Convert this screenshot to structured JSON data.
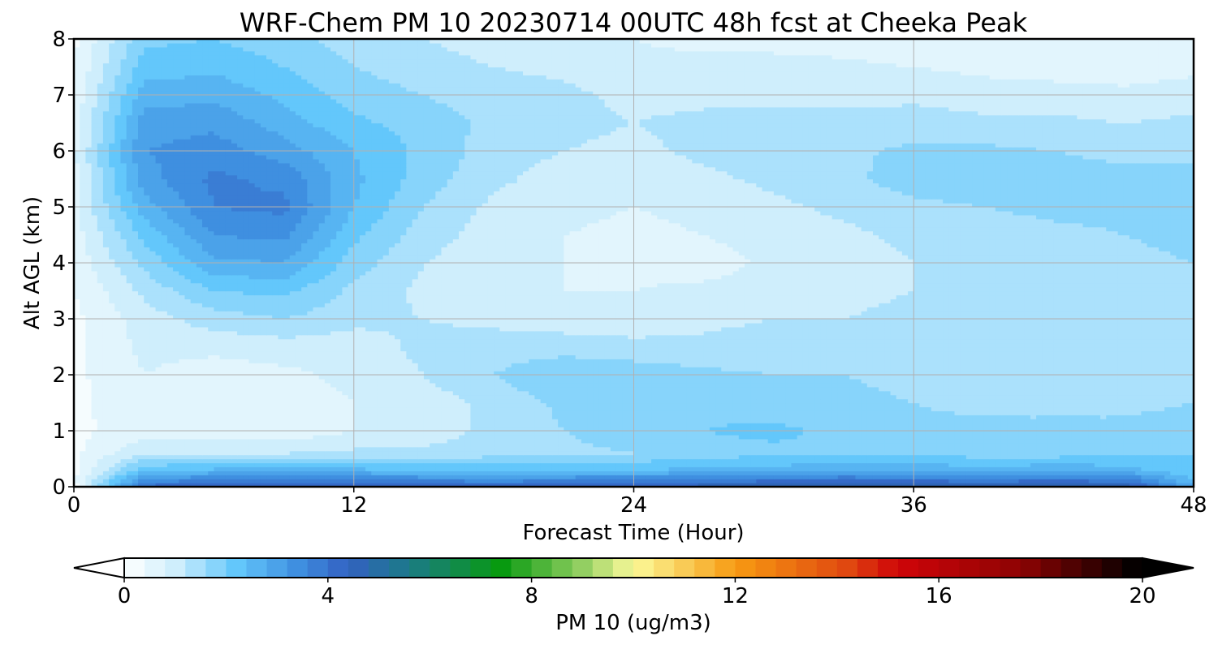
{
  "chart_data": {
    "type": "heatmap",
    "title": "WRF-Chem PM 10  20230714 00UTC 48h fcst at Cheeka Peak",
    "xlabel": "Forecast Time (Hour)",
    "ylabel": "Alt AGL (km)",
    "xlim": [
      0,
      48
    ],
    "ylim": [
      0,
      8
    ],
    "x_ticks": [
      "0",
      "12",
      "24",
      "36",
      "48"
    ],
    "y_ticks": [
      "0",
      "1",
      "2",
      "3",
      "4",
      "5",
      "6",
      "7",
      "8"
    ],
    "grid": true,
    "x_hours": [
      0,
      3,
      6,
      9,
      12,
      15,
      18,
      21,
      24,
      27,
      30,
      33,
      36,
      39,
      42,
      45,
      48
    ],
    "y_km": [
      0,
      0.1,
      0.3,
      0.6,
      1,
      1.5,
      2,
      2.5,
      3,
      3.5,
      4,
      4.5,
      5,
      5.5,
      6,
      6.5,
      7,
      7.5,
      8
    ],
    "values_ugm3": [
      [
        0.2,
        4.2,
        4.5,
        4.6,
        4.5,
        4.4,
        4.3,
        4.4,
        4.5,
        4.7,
        4.9,
        5.0,
        4.9,
        4.8,
        4.9,
        4.8,
        3.0
      ],
      [
        0.3,
        3.5,
        3.8,
        3.9,
        3.8,
        3.7,
        3.6,
        3.7,
        3.8,
        3.9,
        4.1,
        4.2,
        4.1,
        4.0,
        4.1,
        4.0,
        2.5
      ],
      [
        0.3,
        2.3,
        2.5,
        2.5,
        2.5,
        2.4,
        2.4,
        2.4,
        2.4,
        2.5,
        2.6,
        2.7,
        2.7,
        2.6,
        2.7,
        2.6,
        2.0
      ],
      [
        0.3,
        1.2,
        1.2,
        1.2,
        1.3,
        1.3,
        1.4,
        1.5,
        1.6,
        1.8,
        1.9,
        1.9,
        1.9,
        1.8,
        1.8,
        1.9,
        2.0
      ],
      [
        0.3,
        0.6,
        0.5,
        0.5,
        0.8,
        1.0,
        1.3,
        1.6,
        1.8,
        2.0,
        2.1,
        1.9,
        1.7,
        1.7,
        1.7,
        1.7,
        1.8
      ],
      [
        0.3,
        0.7,
        0.6,
        0.6,
        0.8,
        1.0,
        1.3,
        1.7,
        2.0,
        1.9,
        1.8,
        1.7,
        1.6,
        1.5,
        1.5,
        1.5,
        1.6
      ],
      [
        0.3,
        0.8,
        0.6,
        0.7,
        0.9,
        1.2,
        1.6,
        2.0,
        1.9,
        1.7,
        1.6,
        1.6,
        1.5,
        1.4,
        1.4,
        1.4,
        1.5
      ],
      [
        0.3,
        0.9,
        0.9,
        1.0,
        1.0,
        1.3,
        1.4,
        1.4,
        1.3,
        1.3,
        1.4,
        1.4,
        1.4,
        1.3,
        1.3,
        1.3,
        1.4
      ],
      [
        0.3,
        1.0,
        1.4,
        1.6,
        1.3,
        1.2,
        1.1,
        1.0,
        1.0,
        1.1,
        1.2,
        1.2,
        1.3,
        1.3,
        1.2,
        1.2,
        1.3
      ],
      [
        0.4,
        1.3,
        2.0,
        2.1,
        1.5,
        1.1,
        0.9,
        0.8,
        0.8,
        0.9,
        1.0,
        1.1,
        1.2,
        1.2,
        1.3,
        1.4,
        1.4
      ],
      [
        0.5,
        1.7,
        2.7,
        2.8,
        1.8,
        1.2,
        0.9,
        0.8,
        0.7,
        0.6,
        0.9,
        1.0,
        1.2,
        1.3,
        1.4,
        1.5,
        1.6
      ],
      [
        0.6,
        2.1,
        3.2,
        3.3,
        2.1,
        1.4,
        1.0,
        0.8,
        0.7,
        0.8,
        1.0,
        1.1,
        1.3,
        1.4,
        1.5,
        1.6,
        1.7
      ],
      [
        0.7,
        2.6,
        3.6,
        3.7,
        2.4,
        1.6,
        1.1,
        0.9,
        0.8,
        0.9,
        1.1,
        1.3,
        1.5,
        1.6,
        1.7,
        1.7,
        1.8
      ],
      [
        0.7,
        3.0,
        3.7,
        3.5,
        2.5,
        1.8,
        1.3,
        1.0,
        0.9,
        1.1,
        1.3,
        1.5,
        1.8,
        1.8,
        1.8,
        1.7,
        1.7
      ],
      [
        0.7,
        3.2,
        3.4,
        3.0,
        2.4,
        1.9,
        1.4,
        1.2,
        1.1,
        1.3,
        1.4,
        1.5,
        1.7,
        1.7,
        1.6,
        1.5,
        1.5
      ],
      [
        0.6,
        3.0,
        3.1,
        2.6,
        2.1,
        1.8,
        1.5,
        1.3,
        1.2,
        1.3,
        1.3,
        1.3,
        1.4,
        1.3,
        1.3,
        1.2,
        1.3
      ],
      [
        0.5,
        2.6,
        2.7,
        2.3,
        1.8,
        1.6,
        1.4,
        1.3,
        1.1,
        1.1,
        1.1,
        1.1,
        1.1,
        1.0,
        1.0,
        0.9,
        1.0
      ],
      [
        0.4,
        2.2,
        2.3,
        2.0,
        1.6,
        1.4,
        1.2,
        1.1,
        0.9,
        0.9,
        0.9,
        0.9,
        0.8,
        0.7,
        0.6,
        0.6,
        0.7
      ],
      [
        0.3,
        1.9,
        2.0,
        1.8,
        1.4,
        1.2,
        1.0,
        0.9,
        0.8,
        0.7,
        0.7,
        0.6,
        0.5,
        0.4,
        0.4,
        0.4,
        0.5
      ]
    ],
    "colorbar": {
      "label": "PM 10  (ug/m3)",
      "range": [
        0,
        20
      ],
      "ticks": [
        "0",
        "4",
        "8",
        "12",
        "16",
        "20"
      ],
      "extend": "both",
      "bin_width": 0.4,
      "stops": [
        [
          0.0,
          "#ffffff"
        ],
        [
          1.0,
          "#cfeefc"
        ],
        [
          2.2,
          "#63c7fb"
        ],
        [
          3.4,
          "#3f8fe0"
        ],
        [
          4.4,
          "#3361c2"
        ],
        [
          5.6,
          "#1b7a87"
        ],
        [
          7.4,
          "#089a10"
        ],
        [
          9.0,
          "#93cf62"
        ],
        [
          10.0,
          "#fbfa9a"
        ],
        [
          12.0,
          "#f79b12"
        ],
        [
          14.2,
          "#e04810"
        ],
        [
          15.2,
          "#cf0509"
        ],
        [
          17.6,
          "#8e0303"
        ],
        [
          19.9,
          "#000000"
        ]
      ]
    }
  }
}
